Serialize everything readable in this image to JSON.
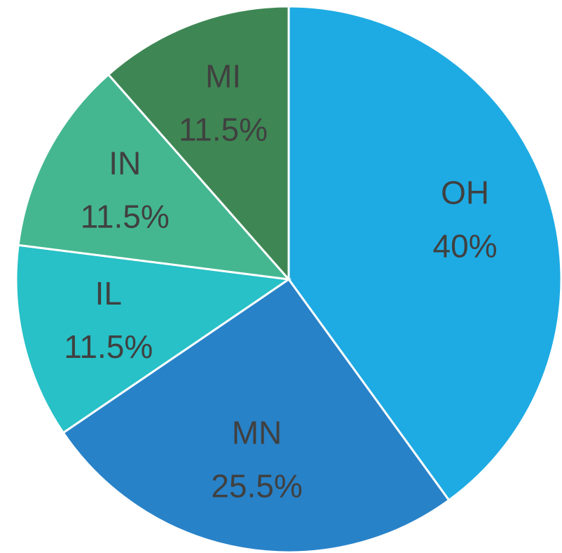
{
  "chart_data": {
    "type": "pie",
    "categories": [
      "OH",
      "MN",
      "IL",
      "IN",
      "MI"
    ],
    "values": [
      40,
      25.5,
      11.5,
      11.5,
      11.5
    ],
    "value_labels": [
      "40%",
      "25.5%",
      "11.5%",
      "11.5%",
      "11.5%"
    ],
    "colors": [
      "#1eabe3",
      "#2882c8",
      "#27c1c7",
      "#44b791",
      "#3e8754"
    ]
  }
}
